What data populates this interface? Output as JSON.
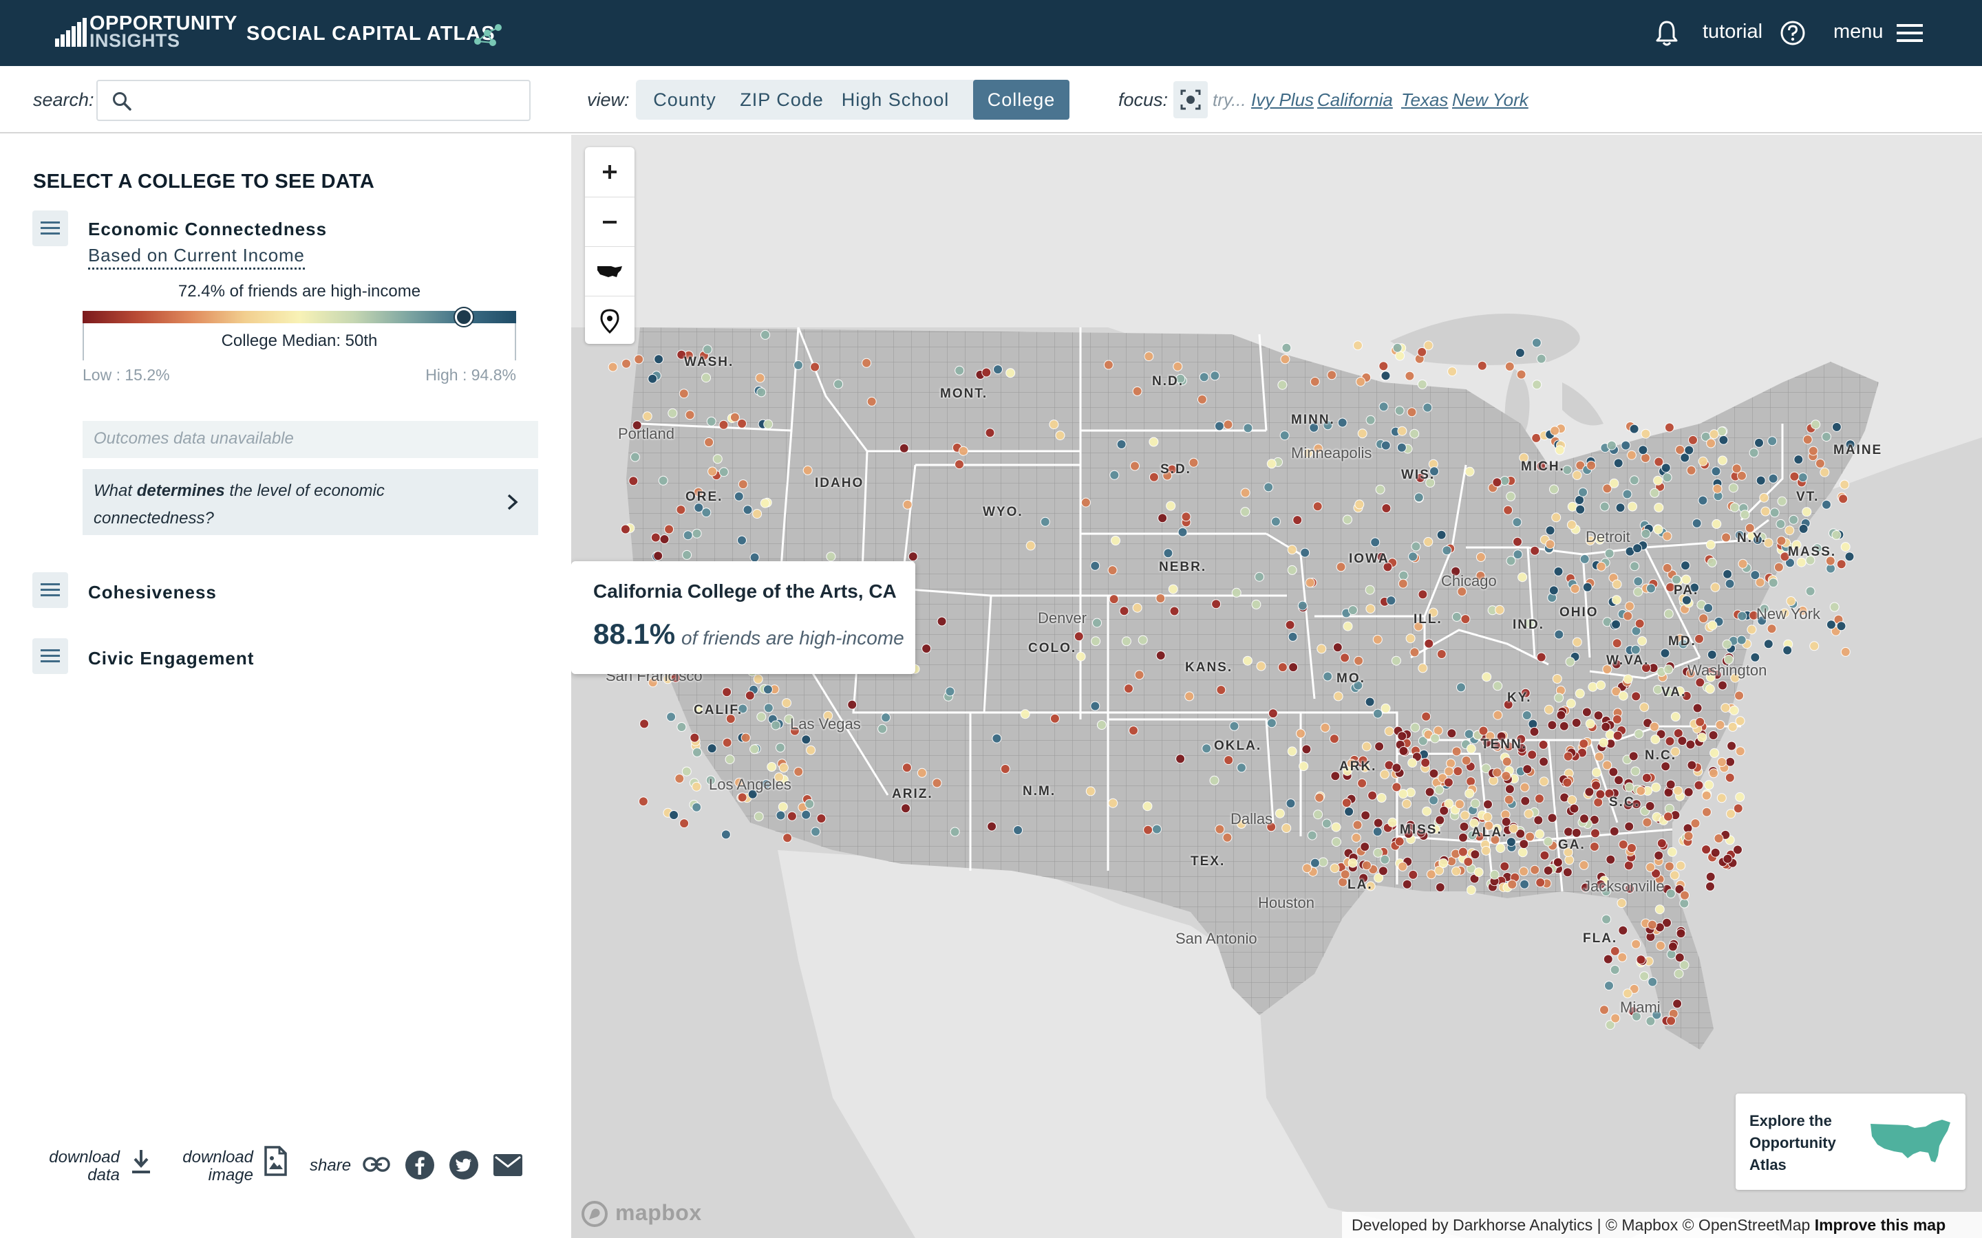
{
  "header": {
    "brand_line1": "OPPORTUNITY",
    "brand_line2": "INSIGHTS",
    "app_title": "SOCIAL CAPITAL ATLAS",
    "tutorial_label": "tutorial",
    "menu_label": "menu"
  },
  "toolbar": {
    "search_label": "search:",
    "search_value": "",
    "view_label": "view:",
    "views": [
      {
        "label": "County",
        "active": false
      },
      {
        "label": "ZIP Code",
        "active": false
      },
      {
        "label": "High School",
        "active": false
      },
      {
        "label": "College",
        "active": true
      }
    ],
    "focus_label": "focus:",
    "try_label": "try...",
    "quick_links": [
      "Ivy Plus",
      "California",
      "Texas",
      "New York"
    ]
  },
  "sidebar": {
    "title": "SELECT A COLLEGE TO SEE DATA",
    "sections": [
      {
        "title": "Economic Connectedness",
        "expanded": true
      },
      {
        "title": "Cohesiveness",
        "expanded": false
      },
      {
        "title": "Civic Engagement",
        "expanded": false
      }
    ],
    "metric": {
      "subtitle": "Based on Current Income",
      "value_text": "72.4% of friends are high-income",
      "value_fraction": 0.879,
      "median_text": "College Median: 50th",
      "low_text": "Low : 15.2%",
      "high_text": "High : 94.8%",
      "unavailable_text": "Outcomes data unavailable",
      "determines_pre": "What ",
      "determines_bold": "determines",
      "determines_post": " the level of economic connectedness?"
    },
    "footer": {
      "download_data_line1": "download",
      "download_data_line2": "data",
      "download_image_line1": "download",
      "download_image_line2": "image",
      "share_label": "share"
    }
  },
  "map": {
    "state_labels": [
      "WASH.",
      "ORE.",
      "IDAHO",
      "MONT.",
      "WYO.",
      "N.D.",
      "S.D.",
      "NEBR.",
      "COLO.",
      "KANS.",
      "OKLA.",
      "TEX.",
      "N.M.",
      "ARIZ.",
      "CALIF.",
      "MINN.",
      "IOWA",
      "MO.",
      "ARK.",
      "LA.",
      "MISS.",
      "ALA.",
      "GA.",
      "FLA.",
      "S.C.",
      "N.C.",
      "TENN.",
      "KY.",
      "VA.",
      "W.VA.",
      "MD.",
      "PA.",
      "N.Y.",
      "OHIO",
      "IND.",
      "ILL.",
      "WIS.",
      "MICH.",
      "MAINE",
      "VT.",
      "MASS."
    ],
    "city_labels": [
      "Portland",
      "San Francisco",
      "Las Vegas",
      "Los Angeles",
      "Denver",
      "Minneapolis",
      "Chicago",
      "Detroit",
      "New York",
      "Washington",
      "Dallas",
      "Houston",
      "San Antonio",
      "Jacksonville",
      "Miami"
    ],
    "tooltip": {
      "title": "California College of the Arts, CA",
      "value": "88.1%",
      "unit": "of friends are high-income"
    },
    "explore_text": "Explore the Opportunity Atlas",
    "mapbox_text": "mapbox",
    "attribution_text": "Developed by Darkhorse Analytics | © Mapbox © OpenStreetMap ",
    "attribution_link": "Improve this map"
  },
  "colors": {
    "header_bg": "#17354a",
    "accent": "#4a7490",
    "scale_low": "#7b1a1d",
    "scale_mid": "#f8f2b6",
    "scale_high": "#1f4c67"
  }
}
